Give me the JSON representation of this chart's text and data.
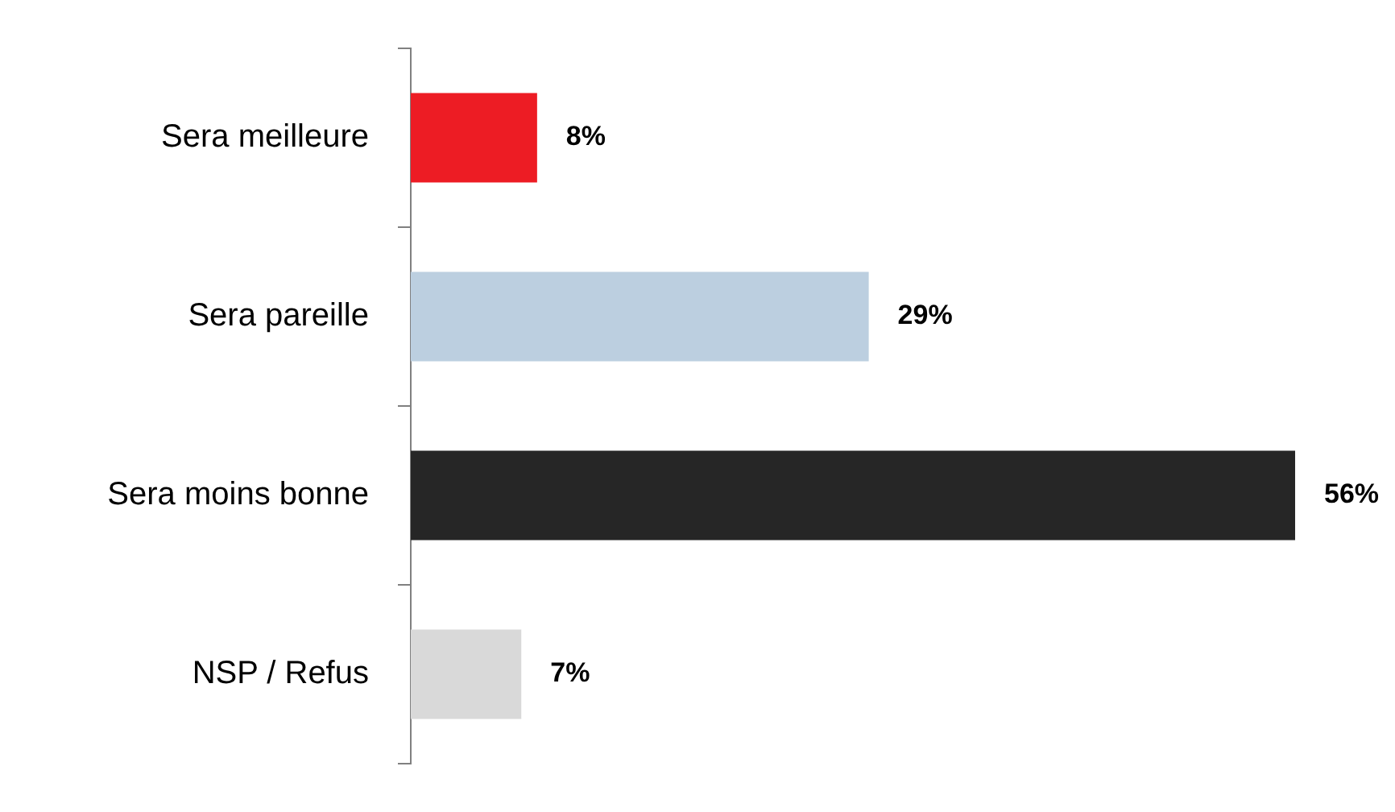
{
  "chart_data": {
    "type": "bar",
    "orientation": "horizontal",
    "categories": [
      "Sera meilleure",
      "Sera pareille",
      "Sera moins bonne",
      "NSP / Refus"
    ],
    "values": [
      8,
      29,
      56,
      7
    ],
    "colors": [
      "#ed1c24",
      "#bccfe0",
      "#262626",
      "#d9d9d9"
    ],
    "value_labels": [
      "8%",
      "29%",
      "56%",
      "7%"
    ],
    "grid": false,
    "legend": false
  }
}
